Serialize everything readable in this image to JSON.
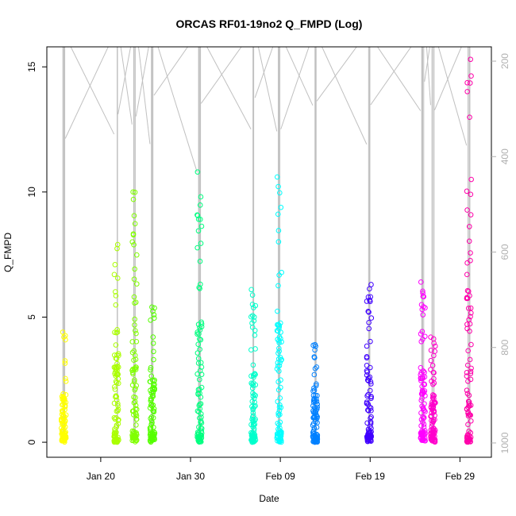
{
  "chart_data": {
    "type": "scatter",
    "title": "ORCAS RF01-19no2 Q_FMPD (Log)",
    "xlabel": "Date",
    "ylabel": "Q_FMPD",
    "xlim": [
      "2016-01-14T00:00",
      "2016-03-03T12:00"
    ],
    "ylim": [
      -0.6,
      15.8
    ],
    "x_ticks": [
      {
        "date": "2016-01-20",
        "label": "Jan 20"
      },
      {
        "date": "2016-01-30",
        "label": "Jan 30"
      },
      {
        "date": "2016-02-09",
        "label": "Feb 09"
      },
      {
        "date": "2016-02-19",
        "label": "Feb 19"
      },
      {
        "date": "2016-02-29",
        "label": "Feb 29"
      }
    ],
    "y_ticks": [
      0,
      5,
      10,
      15
    ],
    "y2_ticks": [
      200,
      400,
      600,
      800,
      1000
    ],
    "y2_range": [
      1030,
      170
    ],
    "grid": false,
    "legend": "none",
    "series": [
      {
        "date": "2016-01-15T21:00",
        "color": "#FFFF00",
        "q_max": 4.4
      },
      {
        "date": "2016-01-21T18:00",
        "color": "#AAFF00",
        "q_max": 7.9
      },
      {
        "date": "2016-01-23T18:00",
        "color": "#80FF00",
        "q_max": 10.0
      },
      {
        "date": "2016-01-25T18:00",
        "color": "#55FF00",
        "q_max": 5.4
      },
      {
        "date": "2016-01-31T00:00",
        "color": "#00FF80",
        "q_max": 10.8
      },
      {
        "date": "2016-02-06T00:00",
        "color": "#00FFCC",
        "q_max": 6.1
      },
      {
        "date": "2016-02-08T21:00",
        "color": "#00FFFF",
        "q_max": 10.6
      },
      {
        "date": "2016-02-12T21:00",
        "color": "#0080FF",
        "q_max": 3.9
      },
      {
        "date": "2016-02-18T21:00",
        "color": "#4000FF",
        "q_max": 6.3
      },
      {
        "date": "2016-02-24T21:00",
        "color": "#FF00FF",
        "q_max": 6.4
      },
      {
        "date": "2016-02-26T00:00",
        "color": "#FF00CC",
        "q_max": 4.2
      },
      {
        "date": "2016-03-01T00:00",
        "color": "#FF00AA",
        "q_max": 15.3
      }
    ],
    "profile_color": "#c0c0c0"
  }
}
